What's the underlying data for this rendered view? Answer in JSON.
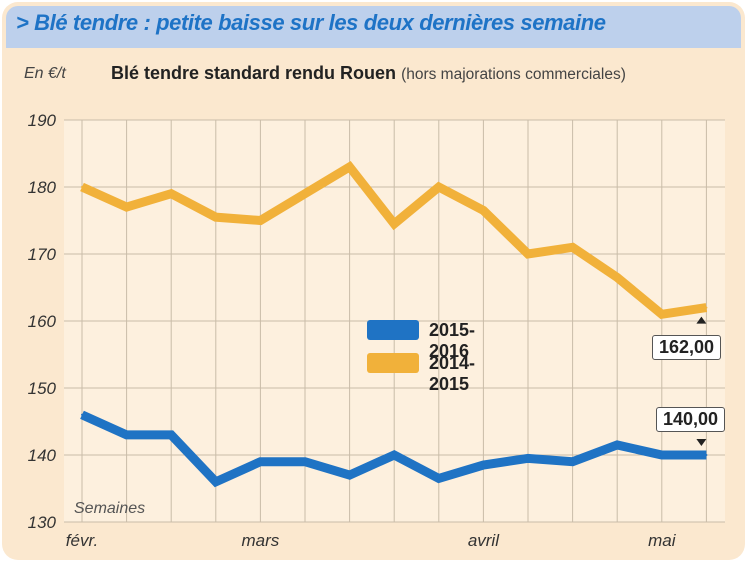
{
  "header": {
    "title": "> Blé tendre : petite baisse sur les deux dernières semaine"
  },
  "subtitle": {
    "unit": "En €/t",
    "main": "Blé tendre standard rendu Rouen",
    "note": "(hors majorations commerciales)"
  },
  "colors": {
    "background": "#fbe8cf",
    "banner": "#bdd0ec",
    "series_2015_2016": "#1f73c4",
    "series_2014_2015": "#f1b13a"
  },
  "chart_data": {
    "type": "line",
    "xlabel": "Semaines",
    "ylabel": "En €/t",
    "ylim": [
      130,
      190
    ],
    "yticks": [
      130,
      140,
      150,
      160,
      170,
      180,
      190
    ],
    "x_month_labels": [
      "févr.",
      "mars",
      "avril",
      "mai"
    ],
    "weeks": 17,
    "grid": true,
    "series": [
      {
        "name": "2015-2016",
        "values": [
          146,
          143,
          143,
          136,
          139,
          139,
          137,
          140,
          136.5,
          138.5,
          139.5,
          139,
          141.5,
          140,
          140
        ]
      },
      {
        "name": "2014-2015",
        "values": [
          180,
          177,
          179,
          175.5,
          175,
          179,
          183,
          174.5,
          180,
          176.5,
          170,
          171,
          166.5,
          161,
          162
        ]
      }
    ],
    "annotations": [
      {
        "series": "2014-2015",
        "label": "162,00"
      },
      {
        "series": "2015-2016",
        "label": "140,00"
      }
    ],
    "legend": "center"
  }
}
